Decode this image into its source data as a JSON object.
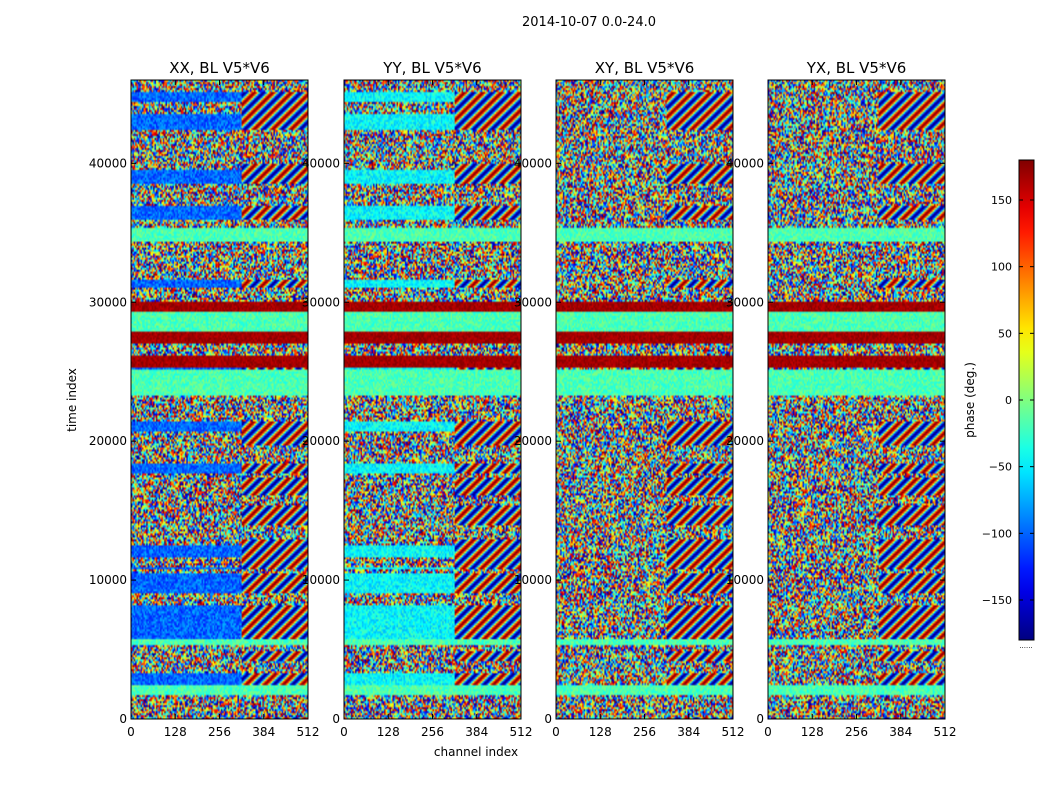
{
  "figure": {
    "suptitle": "2014-10-07 0.0-24.0",
    "xlabel": "channel index",
    "ylabel": "time index"
  },
  "colorbar": {
    "label": "phase (deg.)",
    "colormap": "jet",
    "range": [
      -180,
      180
    ],
    "ticks": [
      150,
      100,
      50,
      0,
      -50,
      -100,
      -150
    ],
    "tick_labels": [
      "150",
      "100",
      "50",
      "0",
      "−50",
      "−100",
      "−150"
    ],
    "extra_label": "......"
  },
  "chart_data": [
    {
      "type": "heatmap",
      "title": "XX, BL V5*V6",
      "x": {
        "range": [
          0,
          512
        ],
        "ticks": [
          0,
          128,
          256,
          384,
          512
        ]
      },
      "y": {
        "range": [
          0,
          46000
        ],
        "ticks": [
          0,
          10000,
          20000,
          30000,
          40000
        ]
      },
      "z": {
        "quantity": "phase (deg.)",
        "range": [
          -180,
          180
        ]
      }
    },
    {
      "type": "heatmap",
      "title": "YY, BL V5*V6",
      "x": {
        "range": [
          0,
          512
        ],
        "ticks": [
          0,
          128,
          256,
          384,
          512
        ]
      },
      "y": {
        "range": [
          0,
          46000
        ],
        "ticks": [
          0,
          10000,
          20000,
          30000,
          40000
        ]
      },
      "z": {
        "quantity": "phase (deg.)",
        "range": [
          -180,
          180
        ]
      }
    },
    {
      "type": "heatmap",
      "title": "XY, BL V5*V6",
      "x": {
        "range": [
          0,
          512
        ],
        "ticks": [
          0,
          128,
          256,
          384,
          512
        ]
      },
      "y": {
        "range": [
          0,
          46000
        ],
        "ticks": [
          0,
          10000,
          20000,
          30000,
          40000
        ]
      },
      "z": {
        "quantity": "phase (deg.)",
        "range": [
          -180,
          180
        ]
      }
    },
    {
      "type": "heatmap",
      "title": "YX, BL V5*V6",
      "x": {
        "range": [
          0,
          512
        ],
        "ticks": [
          0,
          128,
          256,
          384,
          512
        ]
      },
      "y": {
        "range": [
          0,
          46000
        ],
        "ticks": [
          0,
          10000,
          20000,
          30000,
          40000
        ]
      },
      "z": {
        "quantity": "phase (deg.)",
        "range": [
          -180,
          180
        ]
      }
    }
  ]
}
